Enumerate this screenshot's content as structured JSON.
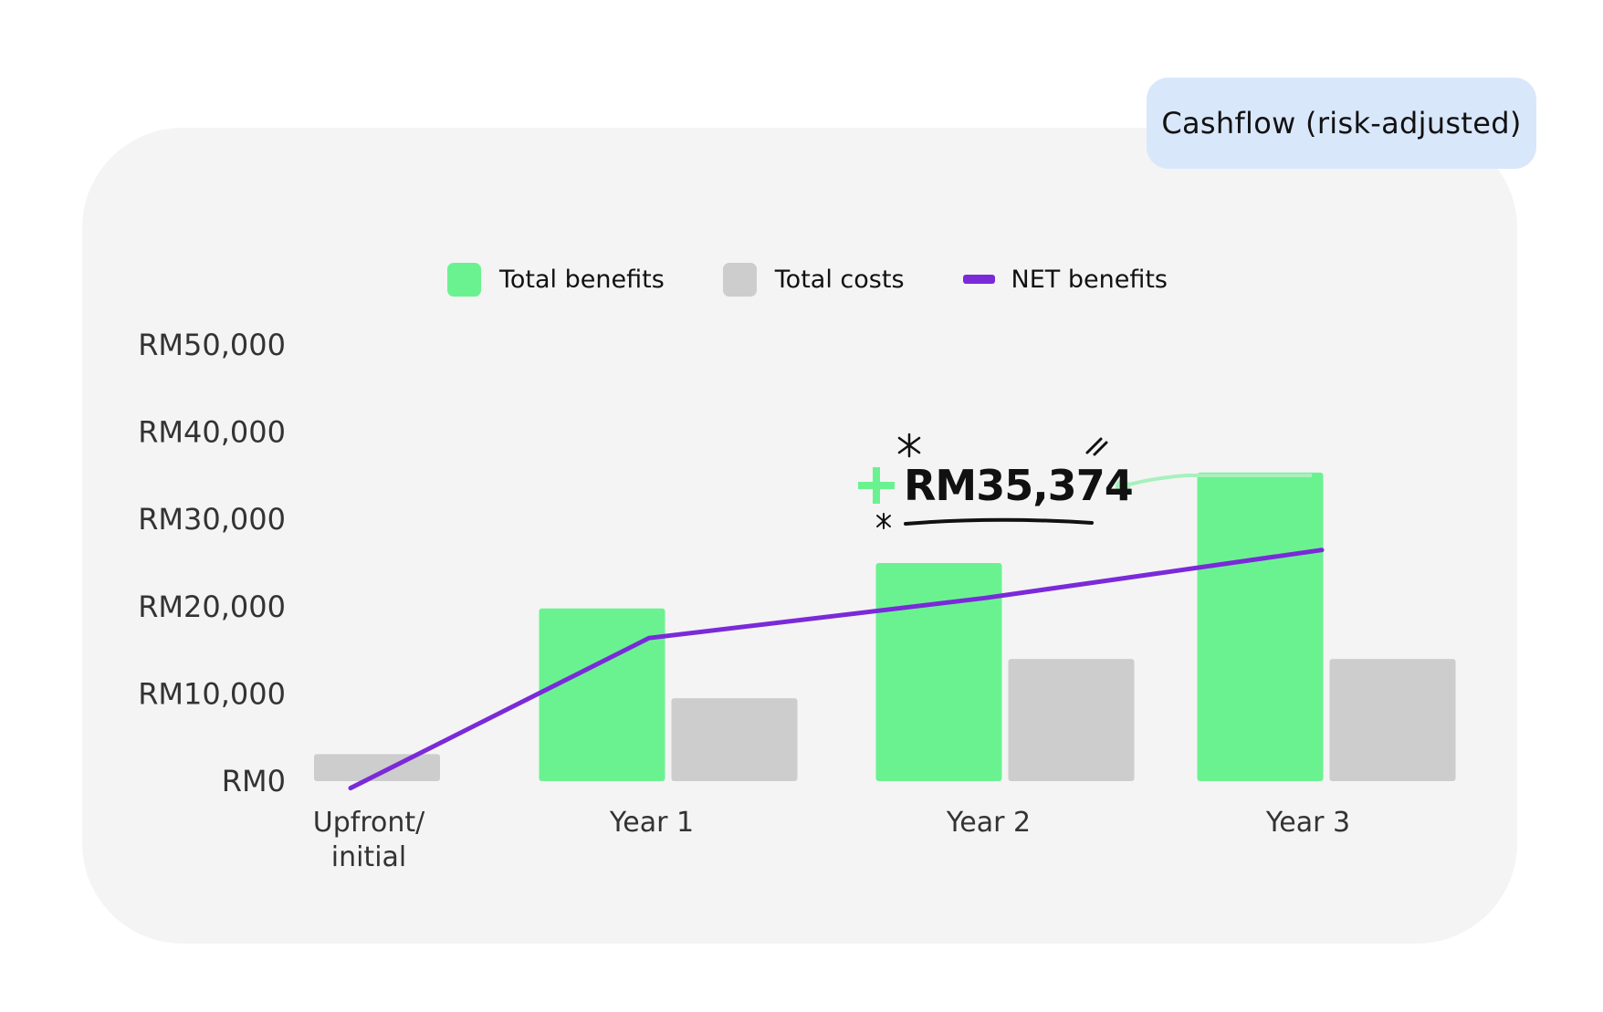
{
  "header": {
    "badge": "Cashflow (risk-adjusted)"
  },
  "legend": [
    {
      "label": "Total benefits",
      "color": "#6bf290",
      "kind": "swatch"
    },
    {
      "label": "Total costs",
      "color": "#cdcdcd",
      "kind": "swatch"
    },
    {
      "label": "NET benefits",
      "color": "#7a2ad9",
      "kind": "line"
    }
  ],
  "callout": {
    "text": "RM35,374",
    "plus_color": "#6bf290"
  },
  "chart_data": {
    "type": "bar",
    "categories": [
      [
        "Upfront/",
        "initial"
      ],
      [
        "Year 1"
      ],
      [
        "Year 2"
      ],
      [
        "Year 3"
      ]
    ],
    "series": [
      {
        "name": "Total benefits",
        "values": [
          0,
          19800,
          25000,
          35374
        ],
        "color": "#6bf290",
        "kind": "bar"
      },
      {
        "name": "Total costs",
        "values": [
          3100,
          9500,
          14000,
          14000
        ],
        "color": "#cdcdcd",
        "kind": "bar"
      },
      {
        "name": "NET benefits",
        "values": [
          -800,
          16400,
          21000,
          26500
        ],
        "color": "#7a2ad9",
        "kind": "line"
      }
    ],
    "y_ticks": [
      "RM0",
      "RM10,000",
      "RM20,000",
      "RM30,000",
      "RM40,000",
      "RM50,000"
    ],
    "y_tick_values": [
      0,
      10000,
      20000,
      30000,
      40000,
      50000
    ],
    "ylim": [
      0,
      50000
    ],
    "grid": false,
    "legend_position": "top-center"
  }
}
